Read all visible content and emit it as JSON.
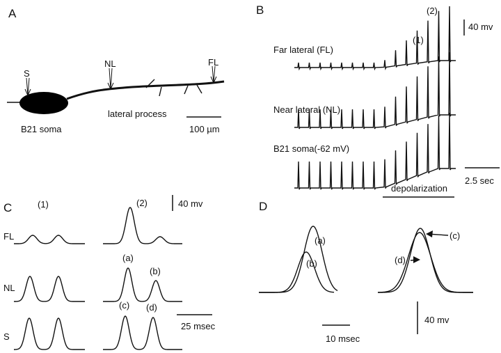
{
  "panels": {
    "A": {
      "label": "A",
      "soma_marker": "S",
      "near_marker": "NL",
      "far_marker": "FL",
      "soma_label": "B21 soma",
      "process_label": "lateral process",
      "scale_label": "100 µm"
    },
    "B": {
      "label": "B",
      "marker_1": "(1)",
      "marker_2": "(2)",
      "voltage_scale": "40 mv",
      "trace_far": "Far lateral (FL)",
      "trace_near": "Near lateral (NL)",
      "trace_soma": "B21 soma(-62 mV)",
      "time_scale": "2.5 sec",
      "stimulus": "depolarization"
    },
    "C": {
      "label": "C",
      "column_1": "(1)",
      "column_2": "(2)",
      "voltage_scale": "40 mv",
      "row_far": "FL",
      "row_near": "NL",
      "row_soma": "S",
      "peak_a": "(a)",
      "peak_b": "(b)",
      "peak_c": "(c)",
      "peak_d": "(d)",
      "time_scale": "25 msec"
    },
    "D": {
      "label": "D",
      "peak_a": "(a)",
      "peak_b": "(b)",
      "peak_c": "(c)",
      "peak_d": "(d)",
      "time_scale": "10 msec",
      "voltage_scale": "40 mv"
    }
  }
}
